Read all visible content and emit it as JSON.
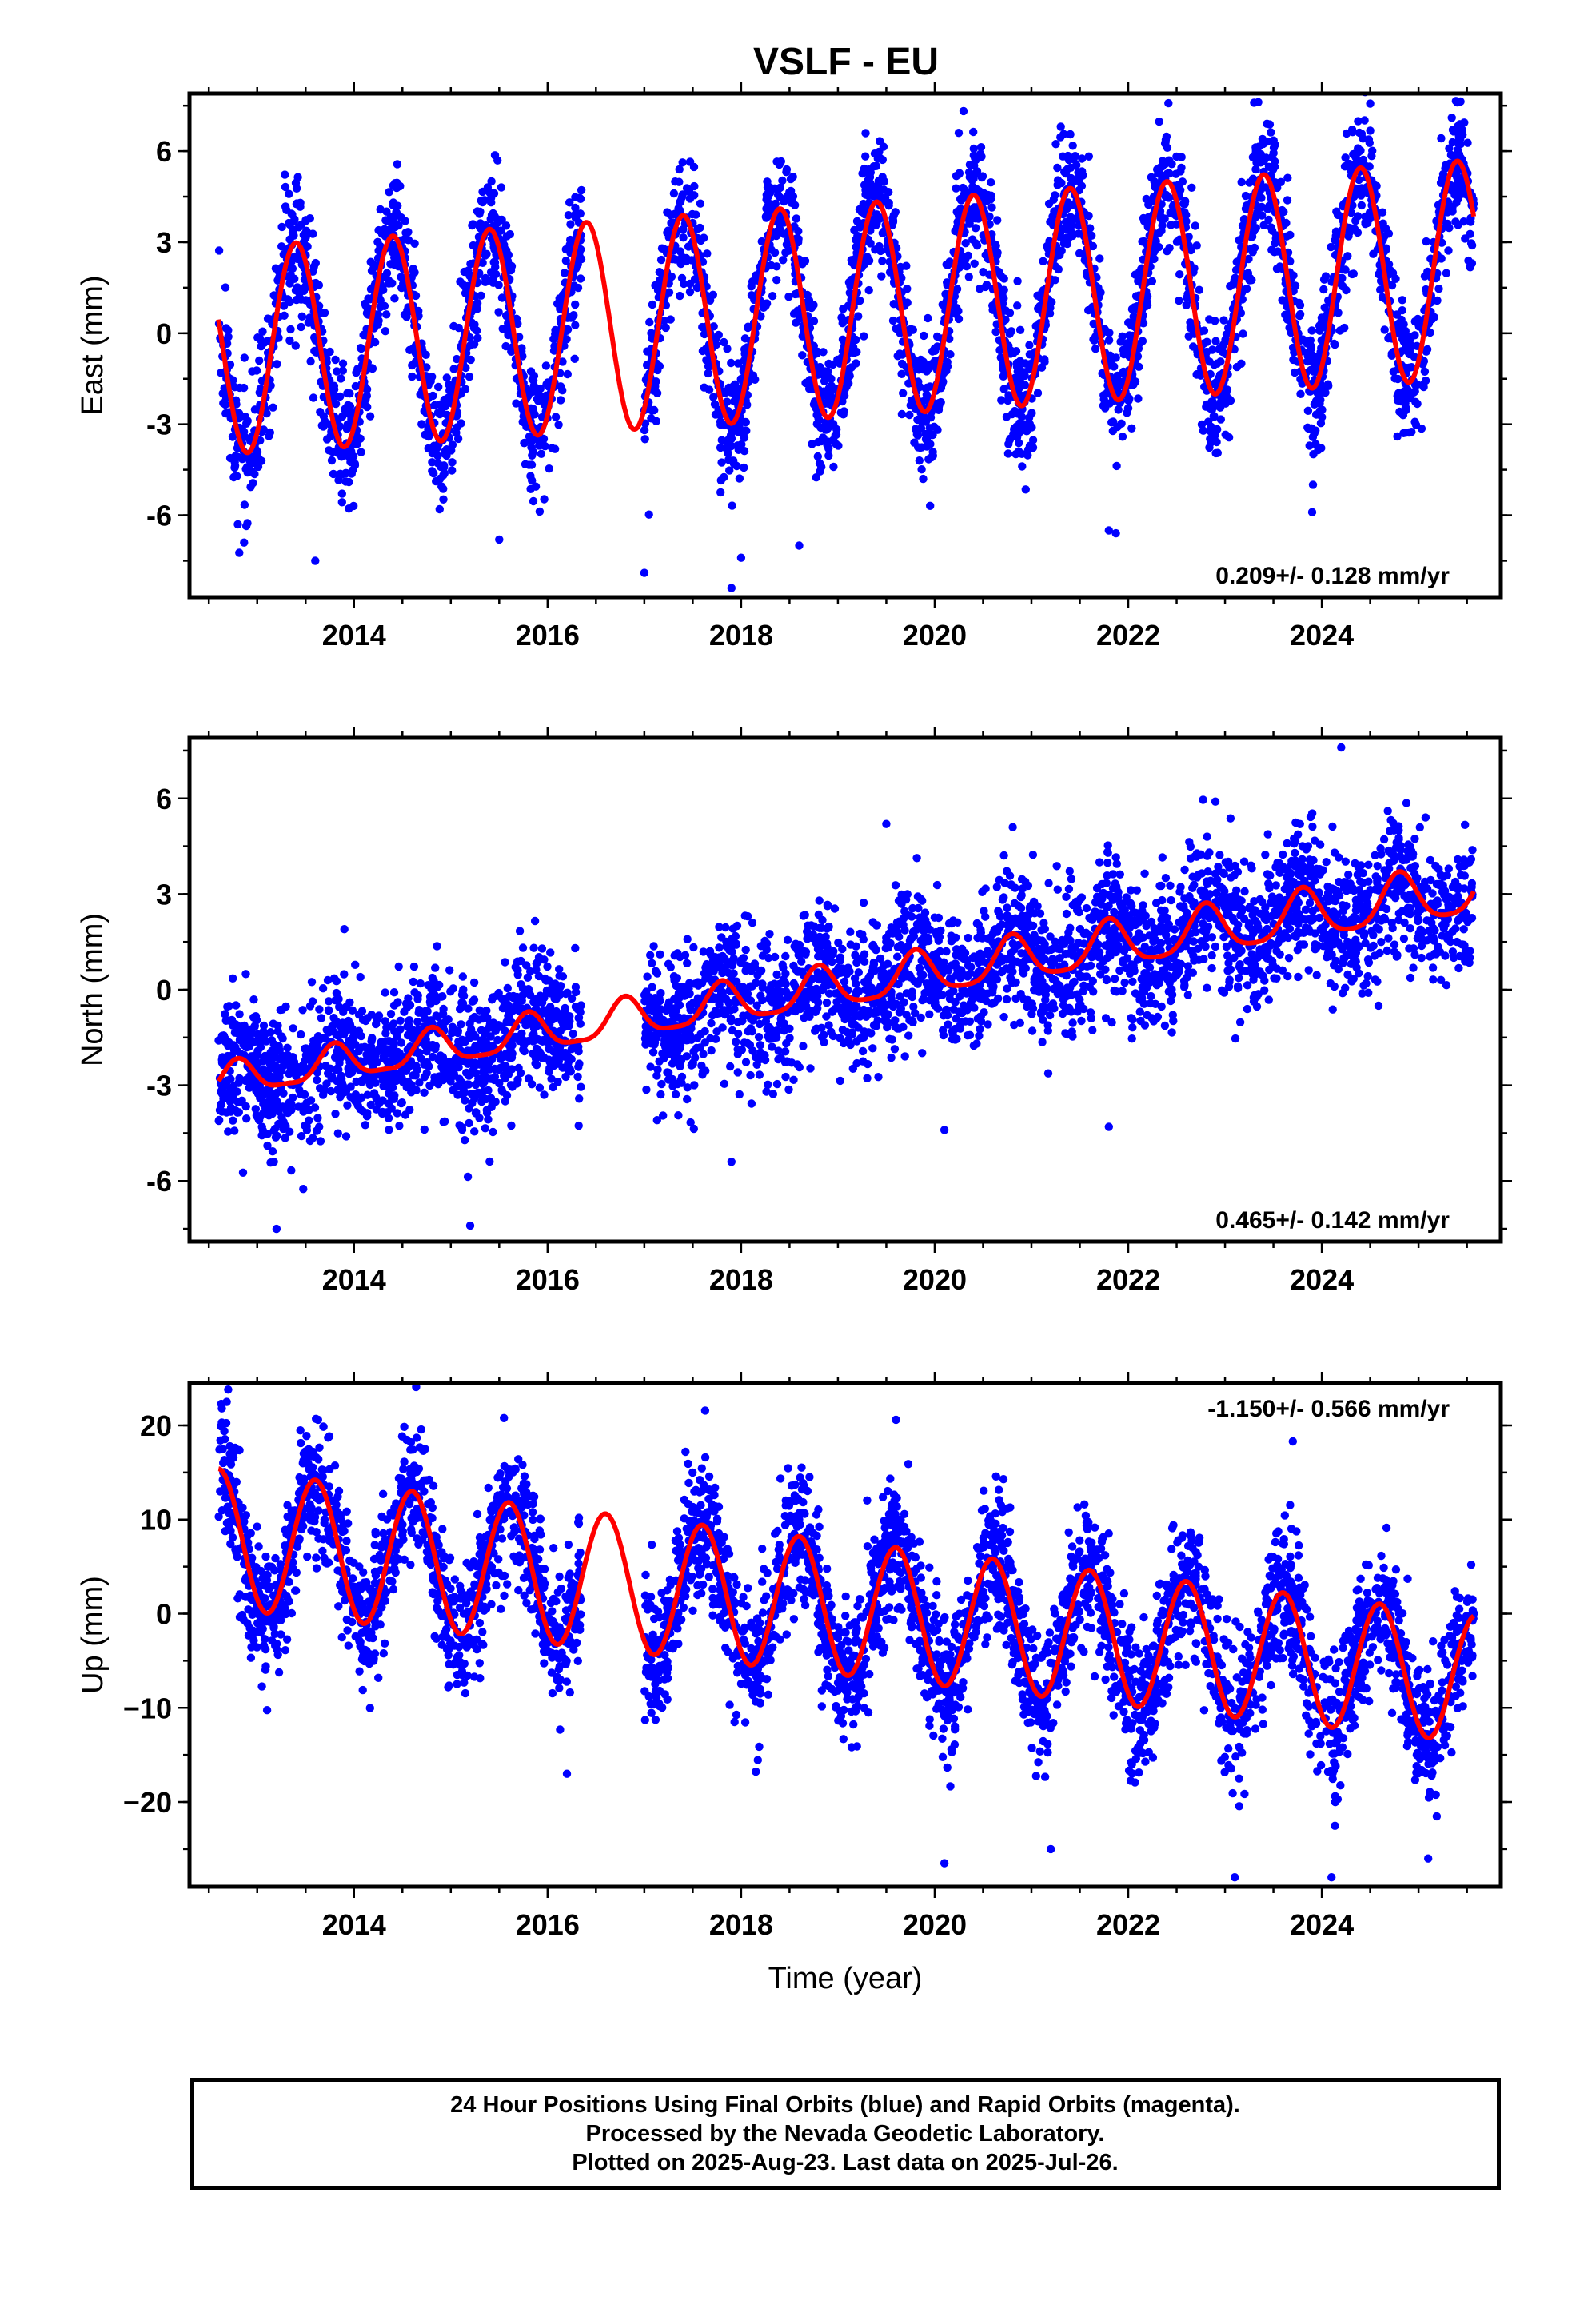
{
  "title": "VSLF - EU",
  "colors": {
    "points": "#0000ff",
    "model": "#ff0000",
    "frame": "#000000"
  },
  "chart_data": [
    {
      "type": "scatter",
      "panel": "east",
      "ylabel": "East (mm)",
      "xlabel": "",
      "xlim": [
        2012.3,
        2025.85
      ],
      "ylim": [
        -8.7,
        7.9
      ],
      "xticks": [
        2014,
        2016,
        2018,
        2020,
        2022,
        2024
      ],
      "yticks": [
        -6,
        -3,
        0,
        3,
        6
      ],
      "ytick_labels": [
        "-6",
        "-3",
        "0",
        "3",
        "6"
      ],
      "rate_label": "0.209+/- 0.128 mm/yr",
      "rate_position": "bottom-right",
      "data_range": [
        2012.6,
        2025.57
      ],
      "data_gap": [
        2016.35,
        2017.0
      ],
      "model": {
        "offset": -0.6,
        "trend": 0.209,
        "amp_start": 3.4,
        "amp_end": 3.6,
        "peak_phase": 0.4,
        "semiannual_amp": 0.0
      },
      "scatter_sd": 1.1,
      "outliers": [
        {
          "x": 2012.8,
          "y": -6.3
        },
        {
          "x": 2013.6,
          "y": -7.5
        },
        {
          "x": 2017.0,
          "y": -7.9
        },
        {
          "x": 2017.9,
          "y": -8.4
        },
        {
          "x": 2018.0,
          "y": -7.4
        },
        {
          "x": 2021.8,
          "y": -6.5
        },
        {
          "x": 2023.3,
          "y": 7.6
        },
        {
          "x": 2023.9,
          "y": -5.9
        },
        {
          "x": 2015.5,
          "y": -6.8
        },
        {
          "x": 2018.6,
          "y": -7.0
        }
      ]
    },
    {
      "type": "scatter",
      "panel": "north",
      "ylabel": "North (mm)",
      "xlabel": "",
      "xlim": [
        2012.3,
        2025.85
      ],
      "ylim": [
        -7.9,
        7.9
      ],
      "xticks": [
        2014,
        2016,
        2018,
        2020,
        2022,
        2024
      ],
      "yticks": [
        -6,
        -3,
        0,
        3,
        6
      ],
      "ytick_labels": [
        "-6",
        "-3",
        "0",
        "3",
        "6"
      ],
      "rate_label": "0.465+/- 0.142 mm/yr",
      "rate_position": "bottom-right",
      "data_range": [
        2012.6,
        2025.57
      ],
      "data_gap": [
        2016.35,
        2017.0
      ],
      "model": {
        "offset": -2.9,
        "trend": 0.465,
        "amp_start": 0.5,
        "amp_end": 0.8,
        "peak_phase": 0.8,
        "semiannual_amp": 0.15
      },
      "scatter_sd": 1.1,
      "outliers": [
        {
          "x": 2013.9,
          "y": 1.9
        },
        {
          "x": 2024.2,
          "y": 7.6
        },
        {
          "x": 2013.2,
          "y": -7.5
        },
        {
          "x": 2015.2,
          "y": -7.4
        },
        {
          "x": 2019.5,
          "y": 5.2
        },
        {
          "x": 2022.9,
          "y": 5.9
        },
        {
          "x": 2020.1,
          "y": -4.4
        },
        {
          "x": 2021.8,
          "y": -4.3
        },
        {
          "x": 2017.9,
          "y": -5.4
        }
      ]
    },
    {
      "type": "scatter",
      "panel": "up",
      "ylabel": "Up (mm)",
      "xlabel": "Time (year)",
      "xlim": [
        2012.3,
        2025.85
      ],
      "ylim": [
        -29,
        24.5
      ],
      "xticks": [
        2014,
        2016,
        2018,
        2020,
        2022,
        2024
      ],
      "yticks": [
        -20,
        -10,
        0,
        10,
        20
      ],
      "ytick_labels": [
        "−20",
        "−10",
        "0",
        "10",
        "20"
      ],
      "rate_label": "-1.150+/- 0.566 mm/yr",
      "rate_position": "top-right",
      "data_range": [
        2012.6,
        2025.57
      ],
      "data_gap": [
        2016.35,
        2017.0
      ],
      "model": {
        "offset": 8.0,
        "trend": -1.15,
        "amp_start": 7.4,
        "amp_end": 6.8,
        "peak_phase": 0.6,
        "semiannual_amp": 0.0
      },
      "scatter_sd": 3.6,
      "outliers": [
        {
          "x": 2012.7,
          "y": 23.8
        },
        {
          "x": 2016.2,
          "y": -17.0
        },
        {
          "x": 2020.1,
          "y": -26.5
        },
        {
          "x": 2023.1,
          "y": -28.0
        },
        {
          "x": 2024.1,
          "y": -28.0
        },
        {
          "x": 2025.1,
          "y": -26.0
        },
        {
          "x": 2023.7,
          "y": 18.3
        },
        {
          "x": 2019.6,
          "y": 20.6
        },
        {
          "x": 2021.2,
          "y": -25.0
        }
      ]
    }
  ],
  "footer": {
    "line1": "24 Hour Positions Using Final Orbits (blue) and Rapid Orbits (magenta).",
    "line2": "Processed by the Nevada Geodetic Laboratory.",
    "line3": "Plotted on 2025-Aug-23. Last data on 2025-Jul-26."
  }
}
